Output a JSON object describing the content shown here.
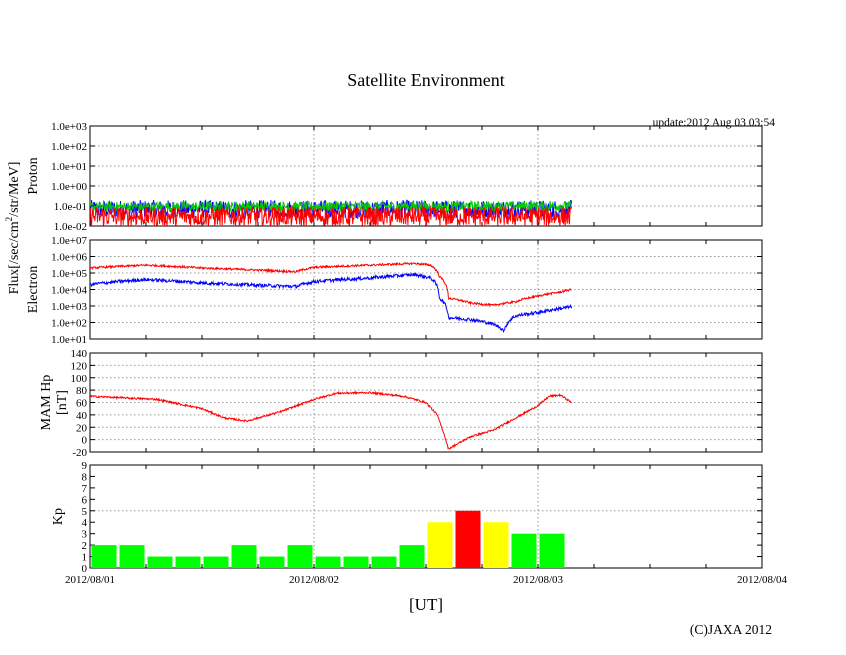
{
  "title": "Satellite Environment",
  "update_text": "update:2012 Aug 03 03:54",
  "xlabel": "[UT]",
  "copyright": "(C)JAXA 2012",
  "flux_ylabel_prefix": "Flux[/sec/cm",
  "flux_ylabel_sup": "2",
  "flux_ylabel_suffix": "/str/MeV]",
  "colors": {
    "red": "#ff0000",
    "blue": "#0000ff",
    "green": "#00cc00",
    "kp_green": "#00ff00",
    "kp_yellow": "#ffff00",
    "kp_red": "#ff0000",
    "grid": "#999999"
  },
  "chart_data": {
    "type": "line",
    "x_ticks": [
      "2012/08/01",
      "2012/08/02",
      "2012/08/03",
      "2012/08/04"
    ],
    "xlim_days": [
      0,
      3
    ],
    "panels": [
      {
        "id": "proton",
        "ylabel": "Proton",
        "scale": "log",
        "ylim": [
          0.01,
          1000
        ],
        "yticks": [
          "1.0e-02",
          "1.0e-01",
          "1.0e+00",
          "1.0e+01",
          "1.0e+02",
          "1.0e+03"
        ],
        "series": [
          {
            "color": "blue",
            "base": [
              [
                0,
                0.07
              ],
              [
                2.15,
                0.07
              ]
            ],
            "noise_decades": 0.45
          },
          {
            "color": "green",
            "base": [
              [
                0,
                0.09
              ],
              [
                2.15,
                0.1
              ]
            ],
            "noise_decades": 0.25
          },
          {
            "color": "red",
            "base": [
              [
                0,
                0.03
              ],
              [
                2.15,
                0.03
              ]
            ],
            "noise_decades": 0.5
          }
        ]
      },
      {
        "id": "electron",
        "ylabel": "Electron",
        "scale": "log",
        "ylim": [
          10,
          10000000
        ],
        "yticks": [
          "1.0e+01",
          "1.0e+02",
          "1.0e+03",
          "1.0e+04",
          "1.0e+05",
          "1.0e+06",
          "1.0e+07"
        ],
        "series": [
          {
            "color": "red",
            "base": [
              [
                0,
                200000
              ],
              [
                0.25,
                300000
              ],
              [
                0.5,
                200000
              ],
              [
                0.75,
                150000
              ],
              [
                0.92,
                120000
              ],
              [
                1.0,
                220000
              ],
              [
                1.25,
                300000
              ],
              [
                1.45,
                380000
              ],
              [
                1.52,
                300000
              ],
              [
                1.56,
                60000
              ],
              [
                1.6,
                3000
              ],
              [
                1.7,
                1500
              ],
              [
                1.8,
                1100
              ],
              [
                1.9,
                1800
              ],
              [
                2.0,
                4000
              ],
              [
                2.1,
                7000
              ],
              [
                2.15,
                10000
              ]
            ],
            "noise_decades": 0.06
          },
          {
            "color": "blue",
            "base": [
              [
                0,
                20000
              ],
              [
                0.25,
                40000
              ],
              [
                0.5,
                25000
              ],
              [
                0.75,
                18000
              ],
              [
                0.92,
                15000
              ],
              [
                1.0,
                30000
              ],
              [
                1.25,
                50000
              ],
              [
                1.45,
                80000
              ],
              [
                1.52,
                50000
              ],
              [
                1.56,
                3000
              ],
              [
                1.6,
                200
              ],
              [
                1.7,
                150
              ],
              [
                1.8,
                80
              ],
              [
                1.85,
                30
              ],
              [
                1.9,
                250
              ],
              [
                2.0,
                400
              ],
              [
                2.1,
                700
              ],
              [
                2.15,
                900
              ]
            ],
            "noise_decades": 0.1
          }
        ]
      },
      {
        "id": "hp",
        "ylabel": "MAM Hp",
        "ylabel2": "[nT]",
        "scale": "linear",
        "ylim": [
          -20,
          140
        ],
        "yticks": [
          "-20",
          "0",
          "20",
          "40",
          "60",
          "80",
          "100",
          "120",
          "140"
        ],
        "series": [
          {
            "color": "red",
            "base": [
              [
                0,
                70
              ],
              [
                0.3,
                65
              ],
              [
                0.5,
                50
              ],
              [
                0.6,
                35
              ],
              [
                0.7,
                30
              ],
              [
                0.85,
                45
              ],
              [
                1.0,
                65
              ],
              [
                1.1,
                75
              ],
              [
                1.25,
                76
              ],
              [
                1.4,
                70
              ],
              [
                1.5,
                60
              ],
              [
                1.55,
                40
              ],
              [
                1.58,
                10
              ],
              [
                1.6,
                -15
              ],
              [
                1.7,
                5
              ],
              [
                1.8,
                15
              ],
              [
                1.9,
                35
              ],
              [
                2.0,
                55
              ],
              [
                2.05,
                70
              ],
              [
                2.1,
                72
              ],
              [
                2.15,
                60
              ]
            ],
            "noise_abs": 1.5
          }
        ]
      }
    ],
    "kp": {
      "ylabel": "Kp",
      "ylim": [
        0,
        9
      ],
      "yticks": [
        "0",
        "1",
        "2",
        "3",
        "4",
        "5",
        "6",
        "7",
        "8",
        "9"
      ],
      "values": [
        2,
        2,
        1,
        1,
        1,
        2,
        1,
        2,
        1,
        1,
        1,
        2,
        4,
        5,
        4,
        3,
        3
      ],
      "colors": [
        "kp_green",
        "kp_green",
        "kp_green",
        "kp_green",
        "kp_green",
        "kp_green",
        "kp_green",
        "kp_green",
        "kp_green",
        "kp_green",
        "kp_green",
        "kp_green",
        "kp_yellow",
        "kp_red",
        "kp_yellow",
        "kp_green",
        "kp_green"
      ]
    }
  }
}
